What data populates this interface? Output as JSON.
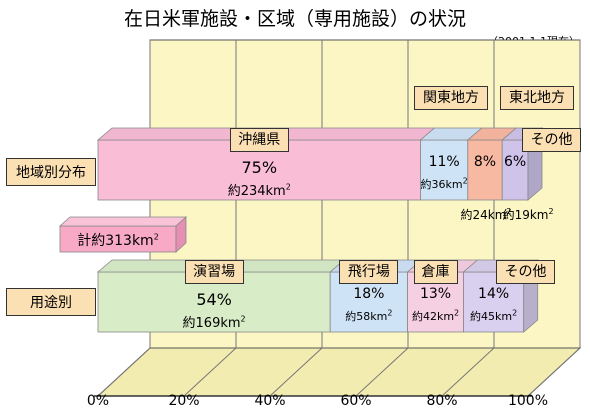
{
  "title": "在日米軍施設・区域（専用施設）の状況",
  "as_of": "（2001.1.1現在）",
  "chart_data": {
    "type": "bar",
    "orientation": "horizontal",
    "stacked": true,
    "normalized": true,
    "xlim": [
      0,
      100
    ],
    "x_ticks": [
      "0%",
      "20%",
      "40%",
      "60%",
      "80%",
      "100%"
    ],
    "total": {
      "label": "計約313km",
      "superscript": "2"
    },
    "categories": [
      "地域別分布",
      "用途別"
    ],
    "rows": [
      {
        "category": "地域別分布",
        "segments": [
          {
            "name": "沖縄県",
            "percent": 75,
            "percent_label": "75%",
            "area_label": "約234km",
            "color": "#f9bdd6"
          },
          {
            "name": "関東地方",
            "percent": 11,
            "percent_label": "11%",
            "area_label": "約36km",
            "color": "#cfe3f6"
          },
          {
            "name": "東北地方",
            "percent": 8,
            "percent_label": "8%",
            "area_label": "約24km",
            "color": "#f8b9a2"
          },
          {
            "name": "その他",
            "percent": 6,
            "percent_label": "6%",
            "area_label": "約19km",
            "color": "#cfc3ea"
          }
        ]
      },
      {
        "category": "用途別",
        "segments": [
          {
            "name": "演習場",
            "percent": 54,
            "percent_label": "54%",
            "area_label": "約169km",
            "color": "#d9ecc8"
          },
          {
            "name": "飛行場",
            "percent": 18,
            "percent_label": "18%",
            "area_label": "約58km",
            "color": "#cfe3f6"
          },
          {
            "name": "倉庫",
            "percent": 13,
            "percent_label": "13%",
            "area_label": "約42km",
            "color": "#f5cfe2"
          },
          {
            "name": "その他",
            "percent": 14,
            "percent_label": "14%",
            "area_label": "約45km",
            "color": "#d9cfee"
          }
        ]
      }
    ]
  }
}
